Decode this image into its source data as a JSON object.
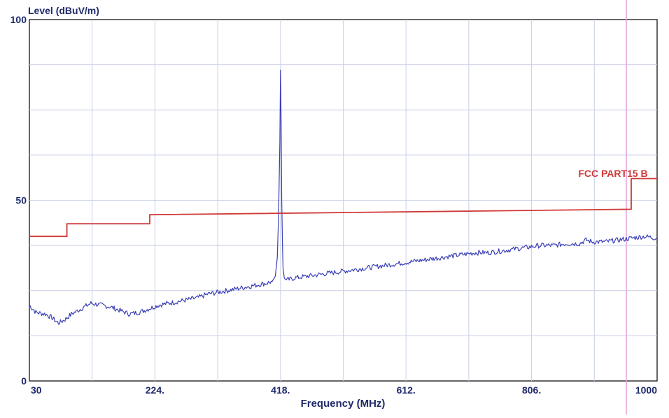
{
  "chart_data": {
    "type": "line",
    "title": "",
    "ylabel": "Level (dBuV/m)",
    "xlabel": "Frequency (MHz)",
    "xlim": [
      30,
      1000
    ],
    "ylim": [
      0,
      100
    ],
    "x_ticks": [
      30,
      224,
      418,
      612,
      806,
      1000
    ],
    "x_tick_labels": [
      "30",
      "224.",
      "418.",
      "612.",
      "806.",
      "1000"
    ],
    "y_ticks": [
      0,
      50,
      100
    ],
    "y_tick_labels": [
      "0",
      "50",
      "100"
    ],
    "grid": true,
    "series": [
      {
        "name": "",
        "color": "#3a3fb5",
        "x": [
          30,
          40,
          55,
          65,
          75,
          85,
          95,
          110,
          125,
          140,
          155,
          170,
          185,
          200,
          215,
          230,
          245,
          260,
          275,
          290,
          305,
          320,
          335,
          350,
          365,
          380,
          395,
          405,
          410,
          413,
          415,
          417,
          418,
          419,
          420,
          421,
          422,
          424,
          426,
          430,
          440,
          460,
          480,
          500,
          520,
          540,
          560,
          580,
          600,
          620,
          640,
          660,
          680,
          700,
          720,
          740,
          760,
          780,
          800,
          820,
          840,
          860,
          880,
          890,
          900,
          920,
          940,
          960,
          980,
          1000
        ],
        "y": [
          21,
          19,
          18.5,
          17.5,
          16,
          17,
          18.5,
          20,
          21.5,
          21,
          20.5,
          19.5,
          18.5,
          19,
          20,
          21,
          21.5,
          22,
          22.5,
          23,
          24,
          24.5,
          25,
          25.5,
          26,
          26.5,
          27,
          27.5,
          29,
          34,
          45,
          66,
          86,
          72,
          50,
          38,
          31,
          28.5,
          28,
          28,
          28.5,
          29,
          29.5,
          30,
          30.5,
          31,
          31.5,
          32,
          32.5,
          33,
          33.5,
          34,
          34.5,
          35,
          35.5,
          35.5,
          36,
          36.5,
          37,
          37.5,
          37.5,
          38,
          38,
          39,
          38.5,
          38.5,
          39,
          39.5,
          40,
          39.5
        ]
      },
      {
        "name": "FCC PART15 B",
        "color": "#d03838",
        "x": [
          30,
          88,
          88,
          216,
          216,
          960,
          960,
          1000
        ],
        "y": [
          40,
          40,
          43.5,
          43.5,
          46,
          47.5,
          56,
          56
        ]
      }
    ],
    "annotations": [
      {
        "text": "FCC PART15 B",
        "series": 1
      }
    ]
  }
}
